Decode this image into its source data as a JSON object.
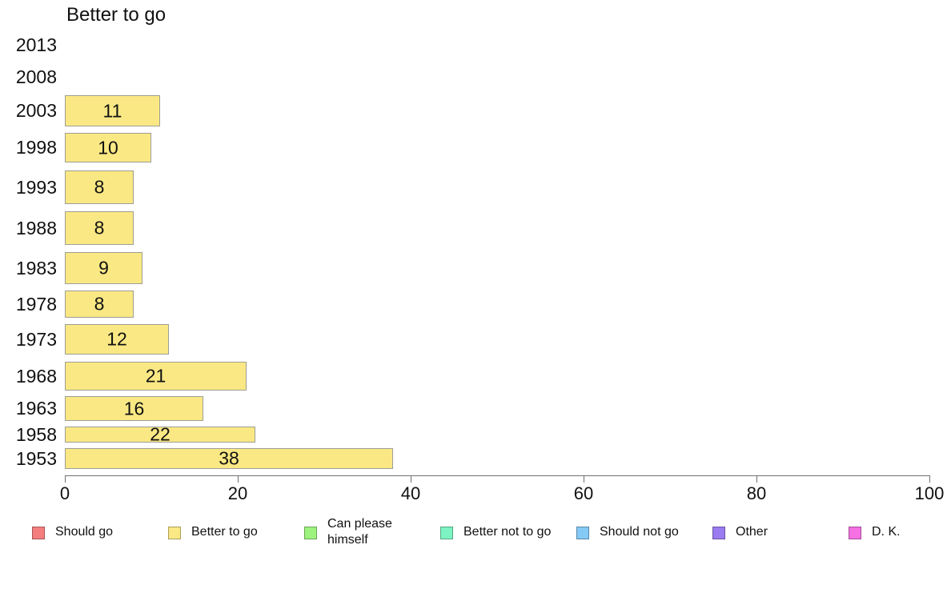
{
  "chart_data": {
    "type": "bar",
    "orientation": "horizontal",
    "title": "Better to go",
    "categories": [
      "2013",
      "2008",
      "2003",
      "1998",
      "1993",
      "1988",
      "1983",
      "1978",
      "1973",
      "1968",
      "1963",
      "1958",
      "1953"
    ],
    "values": [
      null,
      null,
      11,
      10,
      8,
      8,
      9,
      8,
      12,
      21,
      16,
      22,
      38
    ],
    "xlabel": "",
    "ylabel": "",
    "xlim": [
      0,
      100
    ],
    "x_ticks": [
      "0",
      "20",
      "40",
      "60",
      "80",
      "100"
    ],
    "grid": false,
    "data_labels": true,
    "bar_color": "#FAE884",
    "bar_border_color": "#9E9E94",
    "axis_color": "#707070",
    "legend_position": "bottom",
    "legend": [
      {
        "label": "Should go",
        "lines": [
          "Should go"
        ],
        "color": "#F47E7E"
      },
      {
        "label": "Better to go",
        "lines": [
          "Better to go"
        ],
        "color": "#FAE884"
      },
      {
        "label": "Can please himself",
        "lines": [
          "Can please",
          "himself"
        ],
        "color": "#9DF37D"
      },
      {
        "label": "Better not to go",
        "lines": [
          "Better not to go"
        ],
        "color": "#7DF3C1"
      },
      {
        "label": "Should not go",
        "lines": [
          "Should not go"
        ],
        "color": "#85C9F6"
      },
      {
        "label": "Other",
        "lines": [
          "Other"
        ],
        "color": "#9B7CF0"
      },
      {
        "label": "D. K.",
        "lines": [
          "D. K."
        ],
        "color": "#F470E3"
      }
    ]
  }
}
